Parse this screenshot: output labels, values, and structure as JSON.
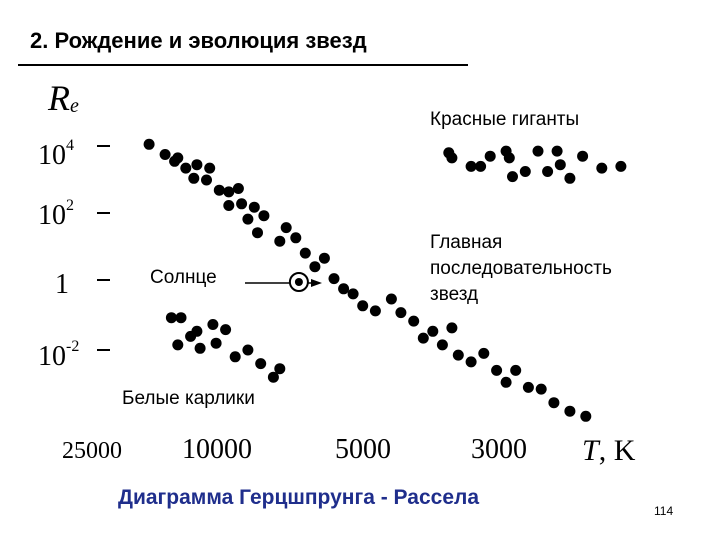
{
  "header": {
    "title": "2. Рождение и эволюция звезд"
  },
  "footer": {
    "title": "Диаграмма Герцшпрунга - Рассела",
    "page_number": "114"
  },
  "chart_data": {
    "type": "scatter",
    "title": "",
    "ylabel": {
      "base": "R",
      "subscript": "e"
    },
    "xlabel": {
      "symbol": "T",
      "unit": ", K"
    },
    "y_ticks": [
      {
        "value": 4,
        "base": "10",
        "exp": "4"
      },
      {
        "value": 2,
        "base": "10",
        "exp": "2"
      },
      {
        "value": 0,
        "base": "1",
        "exp": ""
      },
      {
        "value": -2,
        "base": "10",
        "exp": "-2"
      }
    ],
    "x_ticks": [
      "25000",
      "10000",
      "5000",
      "3000"
    ],
    "annotations": {
      "red_giants": "Красные гиганты",
      "main_sequence": [
        "Главная",
        "последовательность",
        "звезд"
      ],
      "sun": "Солнце",
      "white_dwarfs": "Белые карлики"
    },
    "series": [
      {
        "name": "Главная последовательность звезд",
        "points": [
          [
            0.12,
            4.05
          ],
          [
            0.22,
            3.75
          ],
          [
            0.28,
            3.55
          ],
          [
            0.3,
            3.65
          ],
          [
            0.35,
            3.35
          ],
          [
            0.42,
            3.45
          ],
          [
            0.4,
            3.05
          ],
          [
            0.48,
            3.0
          ],
          [
            0.5,
            3.35
          ],
          [
            0.56,
            2.7
          ],
          [
            0.62,
            2.65
          ],
          [
            0.68,
            2.75
          ],
          [
            0.62,
            2.25
          ],
          [
            0.7,
            2.3
          ],
          [
            0.78,
            2.2
          ],
          [
            0.74,
            1.85
          ],
          [
            0.84,
            1.95
          ],
          [
            0.8,
            1.45
          ],
          [
            0.94,
            1.2
          ],
          [
            0.98,
            1.6
          ],
          [
            1.04,
            1.3
          ],
          [
            1.1,
            0.85
          ],
          [
            1.16,
            0.45
          ],
          [
            1.22,
            0.7
          ],
          [
            1.28,
            0.1
          ],
          [
            1.34,
            -0.2
          ],
          [
            1.4,
            -0.35
          ],
          [
            1.46,
            -0.7
          ],
          [
            1.54,
            -0.85
          ],
          [
            1.64,
            -0.5
          ],
          [
            1.7,
            -0.9
          ],
          [
            1.78,
            -1.15
          ],
          [
            1.84,
            -1.65
          ],
          [
            1.9,
            -1.45
          ],
          [
            1.96,
            -1.85
          ],
          [
            2.02,
            -1.35
          ],
          [
            2.06,
            -2.15
          ],
          [
            2.14,
            -2.35
          ],
          [
            2.22,
            -2.1
          ],
          [
            2.3,
            -2.6
          ],
          [
            2.36,
            -2.95
          ],
          [
            2.42,
            -2.6
          ],
          [
            2.5,
            -3.1
          ],
          [
            2.58,
            -3.15
          ],
          [
            2.66,
            -3.55
          ],
          [
            2.76,
            -3.8
          ],
          [
            2.86,
            -3.95
          ]
        ]
      },
      {
        "name": "Красные гиганты",
        "points": [
          [
            2.0,
            3.8
          ],
          [
            2.02,
            3.65
          ],
          [
            2.14,
            3.4
          ],
          [
            2.2,
            3.4
          ],
          [
            2.26,
            3.7
          ],
          [
            2.36,
            3.85
          ],
          [
            2.38,
            3.65
          ],
          [
            2.4,
            3.1
          ],
          [
            2.48,
            3.25
          ],
          [
            2.56,
            3.85
          ],
          [
            2.62,
            3.25
          ],
          [
            2.68,
            3.85
          ],
          [
            2.7,
            3.45
          ],
          [
            2.76,
            3.05
          ],
          [
            2.84,
            3.7
          ],
          [
            2.96,
            3.35
          ],
          [
            3.08,
            3.4
          ]
        ]
      },
      {
        "name": "Белые карлики",
        "points": [
          [
            0.26,
            -1.05
          ],
          [
            0.32,
            -1.05
          ],
          [
            0.3,
            -1.85
          ],
          [
            0.38,
            -1.6
          ],
          [
            0.42,
            -1.45
          ],
          [
            0.44,
            -1.95
          ],
          [
            0.52,
            -1.25
          ],
          [
            0.54,
            -1.8
          ],
          [
            0.6,
            -1.4
          ],
          [
            0.66,
            -2.2
          ],
          [
            0.74,
            -2.0
          ],
          [
            0.82,
            -2.4
          ],
          [
            0.9,
            -2.8
          ],
          [
            0.94,
            -2.55
          ]
        ]
      }
    ],
    "sun": {
      "x": 1.06,
      "y": 0.0
    },
    "xlim": [
      0,
      3.2
    ],
    "ylim": [
      -4.3,
      4.4
    ],
    "grid": false,
    "legend": "none"
  }
}
